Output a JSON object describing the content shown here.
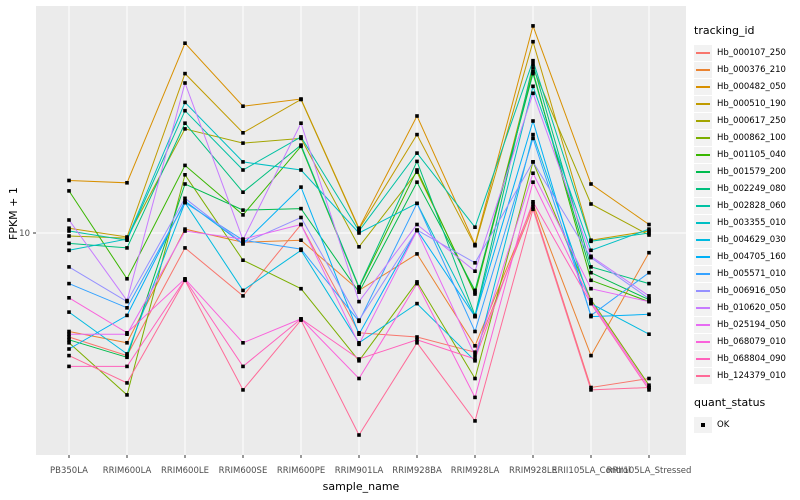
{
  "figure": {
    "bg": "#FFFFFF",
    "panel_bg": "#EBEBEB",
    "grid_color": "#FFFFFF",
    "tick_color": "#333333",
    "axis_text_color": "#4D4D4D",
    "point_color": "#000000"
  },
  "axes": {
    "x_title": "sample_name",
    "y_title": "FPKM + 1",
    "y_tick_labels": [
      "10"
    ],
    "y_tick_values": [
      10
    ]
  },
  "legend": {
    "tracking_title": "tracking_id",
    "quant_title": "quant_status",
    "quant_items": [
      {
        "label": "OK",
        "marker": "black-square"
      }
    ],
    "key_bg": "#F2F2F2",
    "position": "right"
  },
  "chart_data": {
    "type": "line",
    "title": "",
    "xlabel": "sample_name",
    "ylabel": "FPKM + 1",
    "y_scale": "log10",
    "ylim": [
      1.05,
      105
    ],
    "y_breaks": [
      10,
      100
    ],
    "grid": true,
    "legend_position": "right",
    "point_marker": "small black square (quant_status = OK)",
    "categories": [
      "PB350LA",
      "RRIM600LA",
      "RRIM600LE",
      "RRIM600SE",
      "RRIM600PE",
      "RRIM901LA",
      "RRIM928BA",
      "RRIM928LA",
      "RRIM928LE",
      "RRII105LA_Control",
      "RRII105LA_Stressed"
    ],
    "series": [
      {
        "name": "Hb_000107_250",
        "color": "#F8766D",
        "values": [
          3.5,
          2.9,
          8.6,
          5.3,
          10.9,
          3.65,
          3.5,
          3.0,
          13.0,
          2.1,
          2.3
        ]
      },
      {
        "name": "Hb_000376_210",
        "color": "#EA8331",
        "values": [
          3.7,
          3.3,
          10.4,
          9.1,
          9.3,
          5.6,
          8.1,
          3.2,
          13.4,
          2.9,
          8.2
        ]
      },
      {
        "name": "Hb_000482_050",
        "color": "#D89000",
        "values": [
          17.0,
          16.6,
          68,
          36,
          38.7,
          10.5,
          32.6,
          8.9,
          81,
          16.4,
          10.9
        ]
      },
      {
        "name": "Hb_000510_190",
        "color": "#C09B00",
        "values": [
          10.5,
          9.6,
          50,
          27.5,
          38.5,
          10.4,
          27.0,
          8.8,
          69,
          9.3,
          10.2
        ]
      },
      {
        "name": "Hb_000617_250",
        "color": "#A3A500",
        "values": [
          9.7,
          9.5,
          28.6,
          24.8,
          26.0,
          8.7,
          18.5,
          5.5,
          53,
          13.4,
          9.8
        ]
      },
      {
        "name": "Hb_000862_100",
        "color": "#7CAE00",
        "values": [
          3.3,
          1.95,
          18.0,
          7.6,
          5.7,
          2.75,
          6.1,
          2.3,
          20.5,
          5.1,
          2.15
        ]
      },
      {
        "name": "Hb_001105_040",
        "color": "#39B600",
        "values": [
          15.3,
          6.3,
          19.8,
          12.0,
          24.0,
          5.75,
          18.9,
          5.4,
          51,
          6.2,
          5.0
        ]
      },
      {
        "name": "Hb_001579_200",
        "color": "#00BB4E",
        "values": [
          3.4,
          2.85,
          16.4,
          12.6,
          12.8,
          5.5,
          16.7,
          5.6,
          50,
          6.7,
          5.1
        ]
      },
      {
        "name": "Hb_002249_080",
        "color": "#00BF7D",
        "values": [
          9.0,
          8.6,
          30.3,
          15.1,
          24.3,
          5.8,
          20.6,
          4.35,
          55,
          7.1,
          6.0
        ]
      },
      {
        "name": "Hb_002828_060",
        "color": "#00C1A3",
        "values": [
          10.2,
          9.3,
          34.4,
          18.9,
          26.4,
          10.2,
          22.4,
          10.6,
          57,
          9.2,
          10.0
        ]
      },
      {
        "name": "Hb_003355_010",
        "color": "#00BFC4",
        "values": [
          8.4,
          9.4,
          37.4,
          20.5,
          18.9,
          10.0,
          13.5,
          4.3,
          44,
          8.4,
          10.4
        ]
      },
      {
        "name": "Hb_004629_030",
        "color": "#00BAE0",
        "values": [
          4.5,
          2.95,
          13.6,
          5.6,
          8.4,
          3.3,
          4.9,
          2.75,
          27,
          4.9,
          3.6
        ]
      },
      {
        "name": "Hb_004705_160",
        "color": "#00B0F6",
        "values": [
          3.1,
          4.35,
          13.8,
          8.95,
          15.9,
          3.6,
          10.3,
          4.3,
          31,
          4.3,
          4.4
        ]
      },
      {
        "name": "Hb_005571_010",
        "color": "#35A2FF",
        "values": [
          6.0,
          4.7,
          13.6,
          9.3,
          8.5,
          4.1,
          13.5,
          3.7,
          26,
          4.35,
          6.7
        ]
      },
      {
        "name": "Hb_006916_050",
        "color": "#9590FF",
        "values": [
          7.1,
          5.0,
          14.2,
          9.0,
          11.7,
          4.15,
          10.3,
          7.4,
          20.5,
          7.8,
          5.15
        ]
      },
      {
        "name": "Hb_010620_050",
        "color": "#C77CFF",
        "values": [
          11.4,
          5.05,
          45.5,
          9.35,
          30.3,
          5.0,
          10.9,
          6.8,
          41,
          7.9,
          5.3
        ]
      },
      {
        "name": "Hb_025194_050",
        "color": "#E76BF3",
        "values": [
          3.6,
          3.6,
          10.2,
          9.4,
          10.9,
          3.25,
          10.25,
          2.9,
          18.3,
          5.7,
          5.0
        ]
      },
      {
        "name": "Hb_068079_010",
        "color": "#FA62DB",
        "values": [
          5.2,
          3.65,
          6.3,
          3.3,
          4.2,
          2.3,
          6.0,
          1.9,
          16.7,
          5.0,
          2.1
        ]
      },
      {
        "name": "Hb_068804_090",
        "color": "#FF62BC",
        "values": [
          2.6,
          2.6,
          6.25,
          2.6,
          4.2,
          2.8,
          3.4,
          2.8,
          13.7,
          4.9,
          2.05
        ]
      },
      {
        "name": "Hb_124379_010",
        "color": "#FF6A98",
        "values": [
          2.9,
          2.2,
          6.2,
          2.05,
          4.15,
          1.3,
          3.3,
          1.5,
          12.7,
          2.05,
          2.1
        ]
      }
    ]
  }
}
